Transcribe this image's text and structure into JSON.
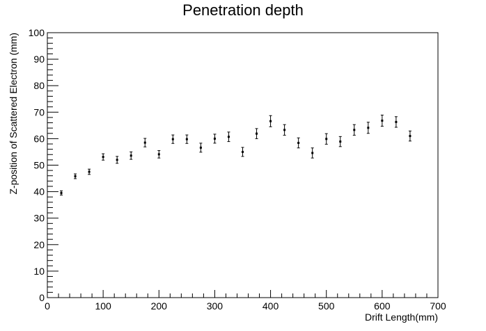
{
  "chart_data": {
    "type": "scatter",
    "title": "Penetration depth",
    "xlabel": "Drift Length(mm)",
    "ylabel": "Z-position of Scattered Electron (mm)",
    "xlim": [
      0,
      700
    ],
    "ylim": [
      0,
      100
    ],
    "x_ticks": [
      0,
      100,
      200,
      300,
      400,
      500,
      600,
      700
    ],
    "y_ticks": [
      0,
      10,
      20,
      30,
      40,
      50,
      60,
      70,
      80,
      90,
      100
    ],
    "grid": false,
    "legend": "none",
    "marker_color": "#000000",
    "series": [
      {
        "x": [
          25,
          50,
          75,
          100,
          125,
          150,
          175,
          200,
          225,
          250,
          275,
          300,
          325,
          350,
          375,
          400,
          425,
          450,
          475,
          500,
          525,
          550,
          575,
          600,
          625,
          650
        ],
        "y": [
          39.5,
          45.8,
          47.5,
          53.1,
          52.0,
          53.6,
          58.5,
          54.1,
          59.8,
          59.8,
          56.6,
          60.0,
          60.7,
          55.0,
          61.9,
          66.6,
          63.3,
          58.4,
          54.6,
          59.9,
          58.9,
          63.3,
          64.1,
          66.8,
          66.3,
          61.0
        ],
        "yerr": [
          0.8,
          0.9,
          1.0,
          1.2,
          1.3,
          1.4,
          1.6,
          1.4,
          1.6,
          1.6,
          1.7,
          1.7,
          1.8,
          1.7,
          1.9,
          2.1,
          2.0,
          1.9,
          1.9,
          2.0,
          1.9,
          2.0,
          2.1,
          2.1,
          2.0,
          1.9
        ]
      }
    ]
  }
}
